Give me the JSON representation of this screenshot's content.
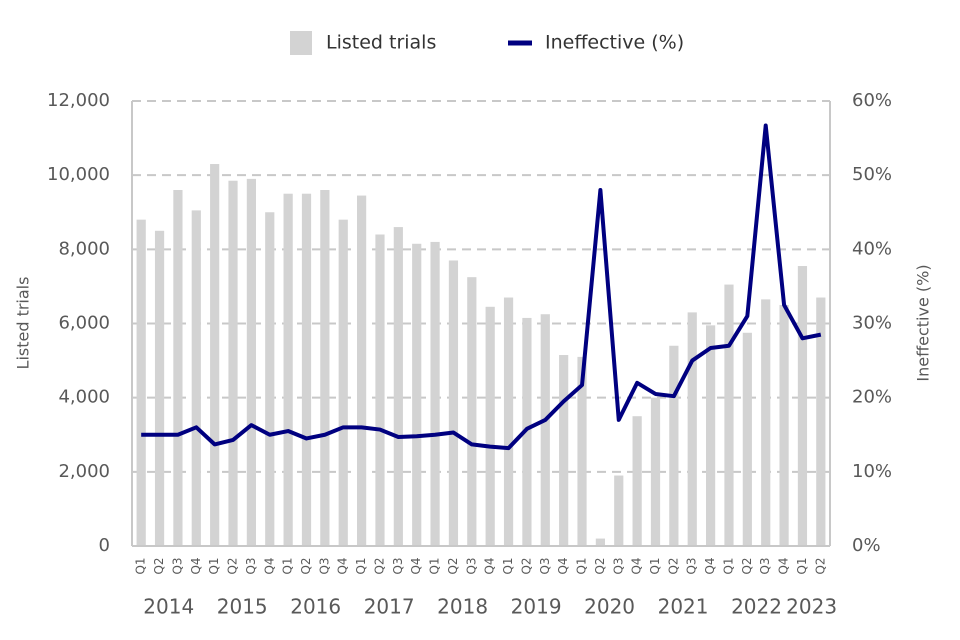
{
  "chart_data": {
    "type": "bar",
    "categories": [
      "Q1",
      "Q2",
      "Q3",
      "Q4",
      "Q1",
      "Q2",
      "Q3",
      "Q4",
      "Q1",
      "Q2",
      "Q3",
      "Q4",
      "Q1",
      "Q2",
      "Q3",
      "Q4",
      "Q1",
      "Q2",
      "Q3",
      "Q4",
      "Q1",
      "Q2",
      "Q3",
      "Q4",
      "Q1",
      "Q2",
      "Q3",
      "Q4",
      "Q1",
      "Q2",
      "Q3",
      "Q4",
      "Q1",
      "Q2",
      "Q3",
      "Q4",
      "Q1",
      "Q2"
    ],
    "years": [
      "2014",
      "2015",
      "2016",
      "2017",
      "2018",
      "2019",
      "2020",
      "2021",
      "2022",
      "2023"
    ],
    "series": [
      {
        "name": "Listed trials",
        "type": "bar",
        "color": "#d3d3d3",
        "values": [
          8800,
          8500,
          9600,
          9050,
          10300,
          9850,
          9900,
          9000,
          9500,
          9500,
          9600,
          8800,
          9450,
          8400,
          8600,
          8150,
          8200,
          7700,
          7250,
          6450,
          6700,
          6150,
          6250,
          5150,
          5100,
          200,
          1900,
          3500,
          4000,
          5400,
          6300,
          5950,
          7050,
          5750,
          6650,
          6500,
          7550,
          6700
        ]
      },
      {
        "name": "Ineffective (%)",
        "type": "line",
        "axis": "y2",
        "color": "#000080",
        "values": [
          15,
          15,
          15,
          16,
          13.7,
          14.3,
          16.3,
          15,
          15.5,
          14.5,
          15,
          16,
          16,
          15.7,
          14.7,
          14.8,
          15,
          15.3,
          13.7,
          13.4,
          13.2,
          15.8,
          17,
          19.5,
          21.7,
          48,
          17,
          22,
          20.5,
          20.2,
          25,
          26.7,
          27,
          31,
          56.7,
          32.5,
          28,
          28.5
        ]
      }
    ],
    "y_label": "Listed trials",
    "y2_label": "Ineffective (%)",
    "ylim": [
      0,
      12000
    ],
    "yticks": [
      0,
      {
        "value": 2000,
        "label": "2,000"
      },
      {
        "value": 4000,
        "label": "4,000"
      },
      {
        "value": 6000,
        "label": "6,000"
      },
      {
        "value": 8000,
        "label": "8,000"
      },
      {
        "value": 10000,
        "label": "10,000"
      },
      {
        "value": 12000,
        "label": "12,000"
      }
    ],
    "y2lim": [
      0,
      60
    ],
    "y2ticks": [
      {
        "value": 0,
        "label": "0%"
      },
      {
        "value": 10,
        "label": "10%"
      },
      {
        "value": 20,
        "label": "20%"
      },
      {
        "value": 30,
        "label": "30%"
      },
      {
        "value": 40,
        "label": "40%"
      },
      {
        "value": 50,
        "label": "50%"
      },
      {
        "value": 60,
        "label": "60%"
      }
    ],
    "grid": true,
    "legend": "top"
  }
}
